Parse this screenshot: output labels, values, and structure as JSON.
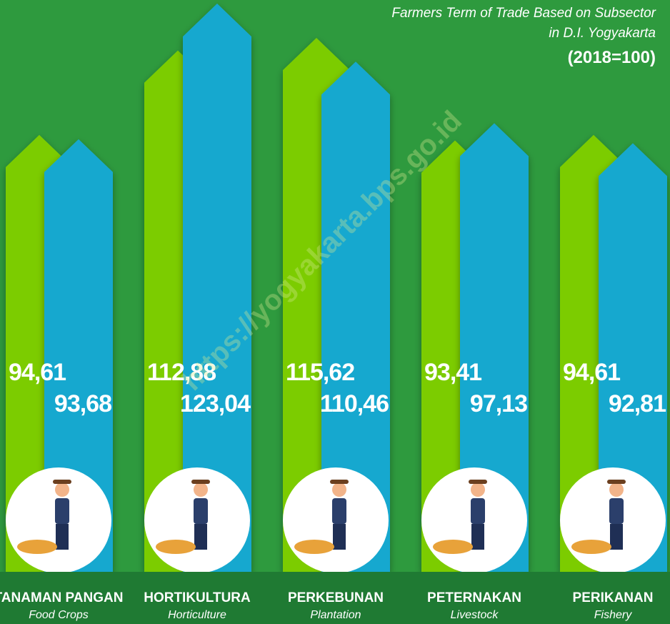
{
  "chart_data": {
    "type": "arrow-bar",
    "title_lines": [
      "Farmers Term of Trade Based on Subsector",
      "in D.I. Yogyakarta"
    ],
    "subtitle": "(2018=100)",
    "watermark": "https://yogyakarta.bps.go.id",
    "categories": [
      "TANAMAN PANGAN",
      "HORTIKULTURA",
      "PERKEBUNAN",
      "PETERNAKAN",
      "PERIKANAN"
    ],
    "category_translations": [
      "Food Crops",
      "Horticulture",
      "Plantation",
      "Livestock",
      "Fishery"
    ],
    "series": [
      {
        "color": "#7ccc00",
        "values": [
          94.61,
          112.88,
          115.62,
          93.41,
          94.61
        ],
        "value_labels": [
          "94,61",
          "112,88",
          "115,62",
          "93,41",
          "94,61"
        ]
      },
      {
        "color": "#19a8cf",
        "values": [
          93.68,
          123.04,
          110.46,
          97.13,
          92.81
        ],
        "value_labels": [
          "93,68",
          "123,04",
          "110,46",
          "97,13",
          "92,81"
        ]
      }
    ]
  }
}
